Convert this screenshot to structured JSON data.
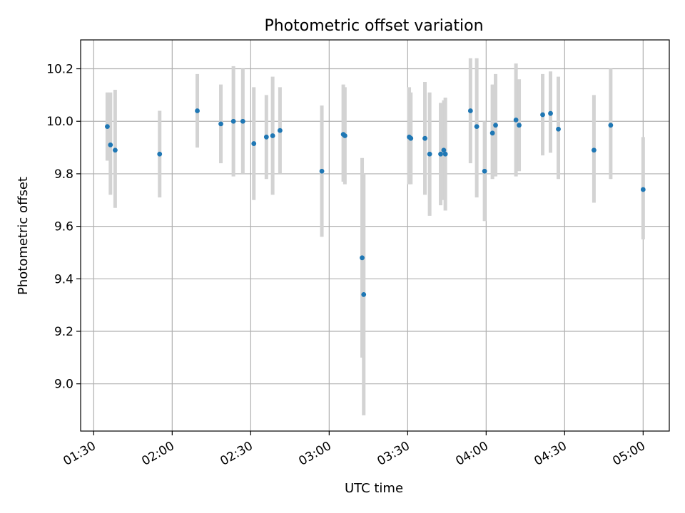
{
  "chart_data": {
    "type": "scatter",
    "title": "Photometric offset variation",
    "xlabel": "UTC time",
    "ylabel": "Photometric offset",
    "x_unit": "UTC clock time HH:MM",
    "xlim": [
      "01:25",
      "05:10"
    ],
    "ylim": [
      8.82,
      10.31
    ],
    "grid": true,
    "point_color": "#1f77b4",
    "errorbar_color": "#d3d3d3",
    "xticks": [
      "01:30",
      "02:00",
      "02:30",
      "03:00",
      "03:30",
      "04:00",
      "04:30",
      "05:00"
    ],
    "yticks": [
      "9.0",
      "9.2",
      "9.4",
      "9.6",
      "9.8",
      "10.0",
      "10.2"
    ],
    "points": [
      {
        "x": "01:35:12",
        "y": 9.98,
        "ylow": 9.85,
        "yhigh": 10.11
      },
      {
        "x": "01:36:24",
        "y": 9.91,
        "ylow": 9.72,
        "yhigh": 10.11
      },
      {
        "x": "01:38:12",
        "y": 9.89,
        "ylow": 9.67,
        "yhigh": 10.12
      },
      {
        "x": "01:55:12",
        "y": 9.875,
        "ylow": 9.71,
        "yhigh": 10.04
      },
      {
        "x": "02:09:36",
        "y": 10.04,
        "ylow": 9.9,
        "yhigh": 10.18
      },
      {
        "x": "02:18:36",
        "y": 9.99,
        "ylow": 9.84,
        "yhigh": 10.14
      },
      {
        "x": "02:23:24",
        "y": 10.0,
        "ylow": 9.79,
        "yhigh": 10.21
      },
      {
        "x": "02:27:00",
        "y": 10.0,
        "ylow": 9.8,
        "yhigh": 10.2
      },
      {
        "x": "02:31:12",
        "y": 9.915,
        "ylow": 9.7,
        "yhigh": 10.13
      },
      {
        "x": "02:36:00",
        "y": 9.94,
        "ylow": 9.78,
        "yhigh": 10.1
      },
      {
        "x": "02:38:24",
        "y": 9.945,
        "ylow": 9.72,
        "yhigh": 10.17
      },
      {
        "x": "02:41:12",
        "y": 9.965,
        "ylow": 9.8,
        "yhigh": 10.13
      },
      {
        "x": "02:57:12",
        "y": 9.81,
        "ylow": 9.56,
        "yhigh": 10.06
      },
      {
        "x": "03:05:24",
        "y": 9.95,
        "ylow": 9.77,
        "yhigh": 10.14
      },
      {
        "x": "03:06:00",
        "y": 9.945,
        "ylow": 9.76,
        "yhigh": 10.13
      },
      {
        "x": "03:12:36",
        "y": 9.48,
        "ylow": 9.1,
        "yhigh": 9.86
      },
      {
        "x": "03:13:12",
        "y": 9.34,
        "ylow": 8.88,
        "yhigh": 9.8
      },
      {
        "x": "03:30:36",
        "y": 9.94,
        "ylow": 9.76,
        "yhigh": 10.13
      },
      {
        "x": "03:31:12",
        "y": 9.935,
        "ylow": 9.76,
        "yhigh": 10.11
      },
      {
        "x": "03:36:36",
        "y": 9.935,
        "ylow": 9.72,
        "yhigh": 10.15
      },
      {
        "x": "03:38:24",
        "y": 9.875,
        "ylow": 9.64,
        "yhigh": 10.11
      },
      {
        "x": "03:42:36",
        "y": 9.875,
        "ylow": 9.68,
        "yhigh": 10.07
      },
      {
        "x": "03:43:48",
        "y": 9.89,
        "ylow": 9.7,
        "yhigh": 10.08
      },
      {
        "x": "03:44:24",
        "y": 9.875,
        "ylow": 9.66,
        "yhigh": 10.09
      },
      {
        "x": "03:54:00",
        "y": 10.04,
        "ylow": 9.84,
        "yhigh": 10.24
      },
      {
        "x": "03:56:24",
        "y": 9.98,
        "ylow": 9.71,
        "yhigh": 10.24
      },
      {
        "x": "03:59:24",
        "y": 9.81,
        "ylow": 9.62,
        "yhigh": 10.0
      },
      {
        "x": "04:02:24",
        "y": 9.955,
        "ylow": 9.78,
        "yhigh": 10.14
      },
      {
        "x": "04:03:36",
        "y": 9.985,
        "ylow": 9.79,
        "yhigh": 10.18
      },
      {
        "x": "04:11:24",
        "y": 10.005,
        "ylow": 9.79,
        "yhigh": 10.22
      },
      {
        "x": "04:12:36",
        "y": 9.985,
        "ylow": 9.81,
        "yhigh": 10.16
      },
      {
        "x": "04:21:36",
        "y": 10.025,
        "ylow": 9.87,
        "yhigh": 10.18
      },
      {
        "x": "04:24:36",
        "y": 10.03,
        "ylow": 9.88,
        "yhigh": 10.19
      },
      {
        "x": "04:27:36",
        "y": 9.97,
        "ylow": 9.78,
        "yhigh": 10.17
      },
      {
        "x": "04:41:12",
        "y": 9.89,
        "ylow": 9.69,
        "yhigh": 10.1
      },
      {
        "x": "04:47:36",
        "y": 9.985,
        "ylow": 9.78,
        "yhigh": 10.2
      },
      {
        "x": "05:00:00",
        "y": 9.74,
        "ylow": 9.55,
        "yhigh": 9.94
      }
    ]
  }
}
